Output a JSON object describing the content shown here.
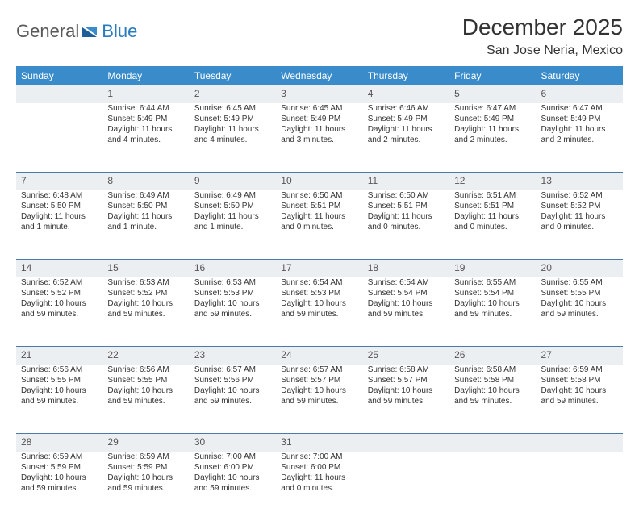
{
  "brand": {
    "general": "General",
    "blue": "Blue"
  },
  "title": "December 2025",
  "location": "San Jose Neria, Mexico",
  "weekday_header_bg": "#3a8bc9",
  "weekday_header_fg": "#ffffff",
  "daynum_bg": "#eceff1",
  "border_color": "#4a7aa8",
  "text_color": "#333333",
  "cell_fontsize": 10,
  "header_fontsize": 12,
  "title_fontsize": 28,
  "weekdays": [
    "Sunday",
    "Monday",
    "Tuesday",
    "Wednesday",
    "Thursday",
    "Friday",
    "Saturday"
  ],
  "weeks": [
    [
      null,
      {
        "n": "1",
        "sr": "Sunrise: 6:44 AM",
        "ss": "Sunset: 5:49 PM",
        "d1": "Daylight: 11 hours",
        "d2": "and 4 minutes."
      },
      {
        "n": "2",
        "sr": "Sunrise: 6:45 AM",
        "ss": "Sunset: 5:49 PM",
        "d1": "Daylight: 11 hours",
        "d2": "and 4 minutes."
      },
      {
        "n": "3",
        "sr": "Sunrise: 6:45 AM",
        "ss": "Sunset: 5:49 PM",
        "d1": "Daylight: 11 hours",
        "d2": "and 3 minutes."
      },
      {
        "n": "4",
        "sr": "Sunrise: 6:46 AM",
        "ss": "Sunset: 5:49 PM",
        "d1": "Daylight: 11 hours",
        "d2": "and 2 minutes."
      },
      {
        "n": "5",
        "sr": "Sunrise: 6:47 AM",
        "ss": "Sunset: 5:49 PM",
        "d1": "Daylight: 11 hours",
        "d2": "and 2 minutes."
      },
      {
        "n": "6",
        "sr": "Sunrise: 6:47 AM",
        "ss": "Sunset: 5:49 PM",
        "d1": "Daylight: 11 hours",
        "d2": "and 2 minutes."
      }
    ],
    [
      {
        "n": "7",
        "sr": "Sunrise: 6:48 AM",
        "ss": "Sunset: 5:50 PM",
        "d1": "Daylight: 11 hours",
        "d2": "and 1 minute."
      },
      {
        "n": "8",
        "sr": "Sunrise: 6:49 AM",
        "ss": "Sunset: 5:50 PM",
        "d1": "Daylight: 11 hours",
        "d2": "and 1 minute."
      },
      {
        "n": "9",
        "sr": "Sunrise: 6:49 AM",
        "ss": "Sunset: 5:50 PM",
        "d1": "Daylight: 11 hours",
        "d2": "and 1 minute."
      },
      {
        "n": "10",
        "sr": "Sunrise: 6:50 AM",
        "ss": "Sunset: 5:51 PM",
        "d1": "Daylight: 11 hours",
        "d2": "and 0 minutes."
      },
      {
        "n": "11",
        "sr": "Sunrise: 6:50 AM",
        "ss": "Sunset: 5:51 PM",
        "d1": "Daylight: 11 hours",
        "d2": "and 0 minutes."
      },
      {
        "n": "12",
        "sr": "Sunrise: 6:51 AM",
        "ss": "Sunset: 5:51 PM",
        "d1": "Daylight: 11 hours",
        "d2": "and 0 minutes."
      },
      {
        "n": "13",
        "sr": "Sunrise: 6:52 AM",
        "ss": "Sunset: 5:52 PM",
        "d1": "Daylight: 11 hours",
        "d2": "and 0 minutes."
      }
    ],
    [
      {
        "n": "14",
        "sr": "Sunrise: 6:52 AM",
        "ss": "Sunset: 5:52 PM",
        "d1": "Daylight: 10 hours",
        "d2": "and 59 minutes."
      },
      {
        "n": "15",
        "sr": "Sunrise: 6:53 AM",
        "ss": "Sunset: 5:52 PM",
        "d1": "Daylight: 10 hours",
        "d2": "and 59 minutes."
      },
      {
        "n": "16",
        "sr": "Sunrise: 6:53 AM",
        "ss": "Sunset: 5:53 PM",
        "d1": "Daylight: 10 hours",
        "d2": "and 59 minutes."
      },
      {
        "n": "17",
        "sr": "Sunrise: 6:54 AM",
        "ss": "Sunset: 5:53 PM",
        "d1": "Daylight: 10 hours",
        "d2": "and 59 minutes."
      },
      {
        "n": "18",
        "sr": "Sunrise: 6:54 AM",
        "ss": "Sunset: 5:54 PM",
        "d1": "Daylight: 10 hours",
        "d2": "and 59 minutes."
      },
      {
        "n": "19",
        "sr": "Sunrise: 6:55 AM",
        "ss": "Sunset: 5:54 PM",
        "d1": "Daylight: 10 hours",
        "d2": "and 59 minutes."
      },
      {
        "n": "20",
        "sr": "Sunrise: 6:55 AM",
        "ss": "Sunset: 5:55 PM",
        "d1": "Daylight: 10 hours",
        "d2": "and 59 minutes."
      }
    ],
    [
      {
        "n": "21",
        "sr": "Sunrise: 6:56 AM",
        "ss": "Sunset: 5:55 PM",
        "d1": "Daylight: 10 hours",
        "d2": "and 59 minutes."
      },
      {
        "n": "22",
        "sr": "Sunrise: 6:56 AM",
        "ss": "Sunset: 5:55 PM",
        "d1": "Daylight: 10 hours",
        "d2": "and 59 minutes."
      },
      {
        "n": "23",
        "sr": "Sunrise: 6:57 AM",
        "ss": "Sunset: 5:56 PM",
        "d1": "Daylight: 10 hours",
        "d2": "and 59 minutes."
      },
      {
        "n": "24",
        "sr": "Sunrise: 6:57 AM",
        "ss": "Sunset: 5:57 PM",
        "d1": "Daylight: 10 hours",
        "d2": "and 59 minutes."
      },
      {
        "n": "25",
        "sr": "Sunrise: 6:58 AM",
        "ss": "Sunset: 5:57 PM",
        "d1": "Daylight: 10 hours",
        "d2": "and 59 minutes."
      },
      {
        "n": "26",
        "sr": "Sunrise: 6:58 AM",
        "ss": "Sunset: 5:58 PM",
        "d1": "Daylight: 10 hours",
        "d2": "and 59 minutes."
      },
      {
        "n": "27",
        "sr": "Sunrise: 6:59 AM",
        "ss": "Sunset: 5:58 PM",
        "d1": "Daylight: 10 hours",
        "d2": "and 59 minutes."
      }
    ],
    [
      {
        "n": "28",
        "sr": "Sunrise: 6:59 AM",
        "ss": "Sunset: 5:59 PM",
        "d1": "Daylight: 10 hours",
        "d2": "and 59 minutes."
      },
      {
        "n": "29",
        "sr": "Sunrise: 6:59 AM",
        "ss": "Sunset: 5:59 PM",
        "d1": "Daylight: 10 hours",
        "d2": "and 59 minutes."
      },
      {
        "n": "30",
        "sr": "Sunrise: 7:00 AM",
        "ss": "Sunset: 6:00 PM",
        "d1": "Daylight: 10 hours",
        "d2": "and 59 minutes."
      },
      {
        "n": "31",
        "sr": "Sunrise: 7:00 AM",
        "ss": "Sunset: 6:00 PM",
        "d1": "Daylight: 11 hours",
        "d2": "and 0 minutes."
      },
      null,
      null,
      null
    ]
  ]
}
